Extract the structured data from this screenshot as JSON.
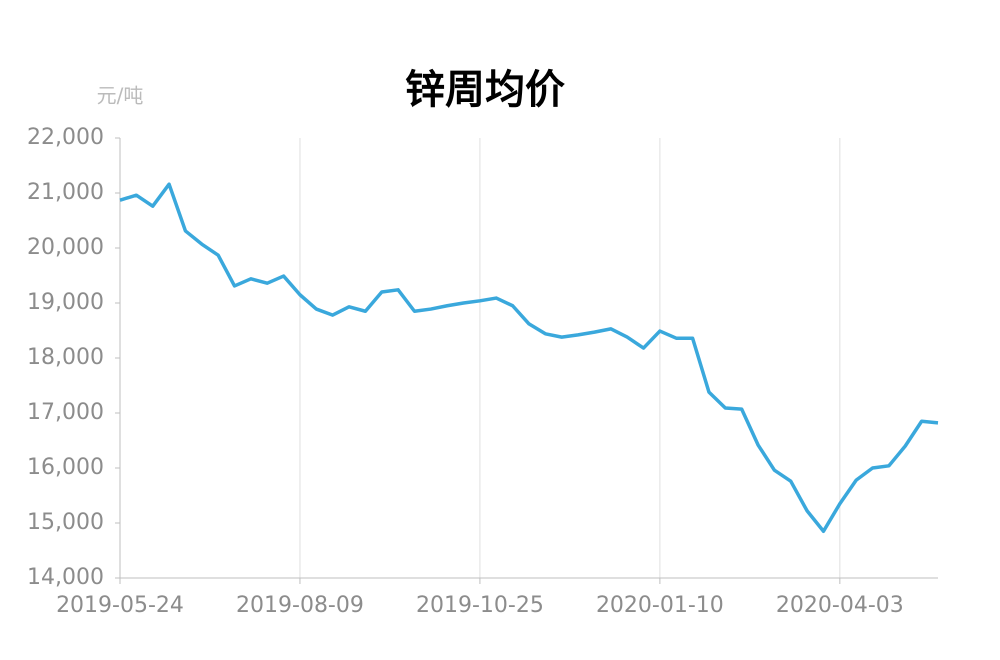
{
  "chart_data": {
    "type": "line",
    "title": "锌周均价",
    "y_label": "元/吨",
    "categories": [
      "2019-05-24",
      null,
      null,
      null,
      null,
      null,
      null,
      null,
      null,
      null,
      null,
      "2019-08-09",
      null,
      null,
      null,
      null,
      null,
      null,
      null,
      null,
      null,
      null,
      "2019-10-25",
      null,
      null,
      null,
      null,
      null,
      null,
      null,
      null,
      null,
      null,
      "2020-01-10",
      null,
      null,
      null,
      null,
      null,
      null,
      null,
      null,
      null,
      null,
      "2020-04-03",
      null,
      null,
      null,
      null,
      null,
      null
    ],
    "series": [
      {
        "name": "锌周均价",
        "color": "#3aa8dc",
        "values": [
          20870,
          20960,
          20760,
          21160,
          20310,
          20070,
          19870,
          19310,
          19440,
          19360,
          19490,
          19150,
          18890,
          18780,
          18930,
          18850,
          19200,
          19240,
          18850,
          18890,
          18950,
          19000,
          19040,
          19090,
          18950,
          18620,
          18440,
          18380,
          18420,
          18470,
          18530,
          18380,
          18180,
          18490,
          18360,
          18360,
          17380,
          17090,
          17070,
          16420,
          15960,
          15760,
          15220,
          14850,
          15350,
          15780,
          16000,
          16040,
          16400,
          16850,
          16820
        ]
      }
    ],
    "ylim": [
      14000,
      22000
    ],
    "yticks": [
      {
        "value": 14000,
        "label": "14,000"
      },
      {
        "value": 15000,
        "label": "15,000"
      },
      {
        "value": 16000,
        "label": "16,000"
      },
      {
        "value": 17000,
        "label": "17,000"
      },
      {
        "value": 18000,
        "label": "18,000"
      },
      {
        "value": 19000,
        "label": "19,000"
      },
      {
        "value": 20000,
        "label": "20,000"
      },
      {
        "value": 21000,
        "label": "21,000"
      },
      {
        "value": 22000,
        "label": "22,000"
      }
    ],
    "grid": true
  }
}
